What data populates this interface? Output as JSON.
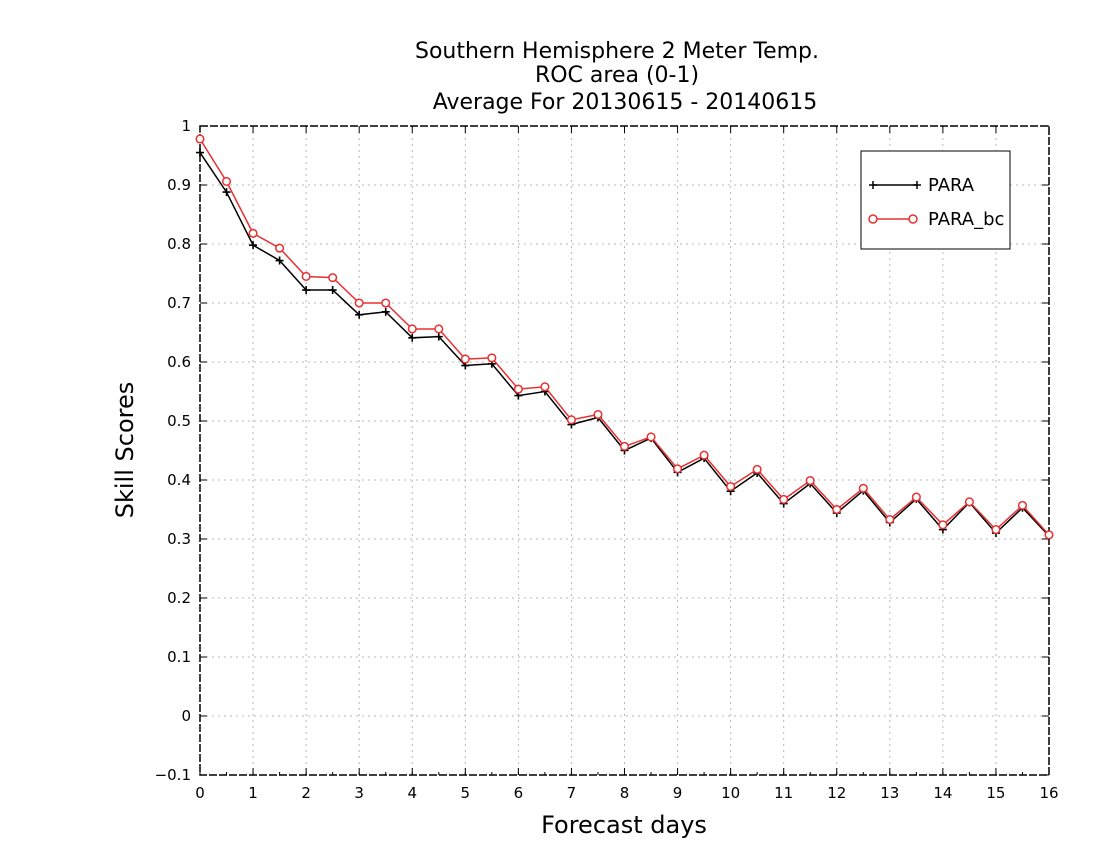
{
  "chart_data": {
    "type": "line",
    "title": [
      "Southern Hemisphere 2 Meter Temp.",
      "ROC area (0-1)",
      "Average For 20130615 - 20140615"
    ],
    "xlabel": "Forecast days",
    "ylabel": "Skill Scores",
    "xlim": [
      0,
      16
    ],
    "ylim": [
      -0.1,
      1
    ],
    "x_ticks": [
      "0",
      "1",
      "2",
      "3",
      "4",
      "5",
      "6",
      "7",
      "8",
      "9",
      "10",
      "11",
      "12",
      "13",
      "14",
      "15",
      "16"
    ],
    "y_ticks": [
      "−0.1",
      "0",
      "0.1",
      "0.2",
      "0.3",
      "0.4",
      "0.5",
      "0.6",
      "0.7",
      "0.8",
      "0.9",
      "1"
    ],
    "grid": true,
    "legend_position": "top-right",
    "x": [
      0,
      0.5,
      1,
      1.5,
      2,
      2.5,
      3,
      3.5,
      4,
      4.5,
      5,
      5.5,
      6,
      6.5,
      7,
      7.5,
      8,
      8.5,
      9,
      9.5,
      10,
      10.5,
      11,
      11.5,
      12,
      12.5,
      13,
      13.5,
      14,
      14.5,
      15,
      15.5,
      16
    ],
    "series": [
      {
        "name": "PARA",
        "color": "#000000",
        "marker": "plus",
        "values": [
          0.955,
          0.888,
          0.798,
          0.772,
          0.722,
          0.722,
          0.68,
          0.685,
          0.641,
          0.643,
          0.594,
          0.597,
          0.543,
          0.55,
          0.494,
          0.506,
          0.45,
          0.471,
          0.413,
          0.437,
          0.381,
          0.412,
          0.36,
          0.394,
          0.344,
          0.382,
          0.328,
          0.368,
          0.316,
          0.362,
          0.31,
          0.353,
          0.305
        ]
      },
      {
        "name": "PARA_bc",
        "color": "#e83030",
        "marker": "circle",
        "values": [
          0.978,
          0.906,
          0.818,
          0.793,
          0.745,
          0.743,
          0.7,
          0.7,
          0.656,
          0.656,
          0.605,
          0.607,
          0.554,
          0.558,
          0.502,
          0.511,
          0.457,
          0.473,
          0.419,
          0.442,
          0.389,
          0.418,
          0.367,
          0.399,
          0.35,
          0.386,
          0.333,
          0.371,
          0.324,
          0.363,
          0.316,
          0.357,
          0.307
        ]
      }
    ]
  }
}
